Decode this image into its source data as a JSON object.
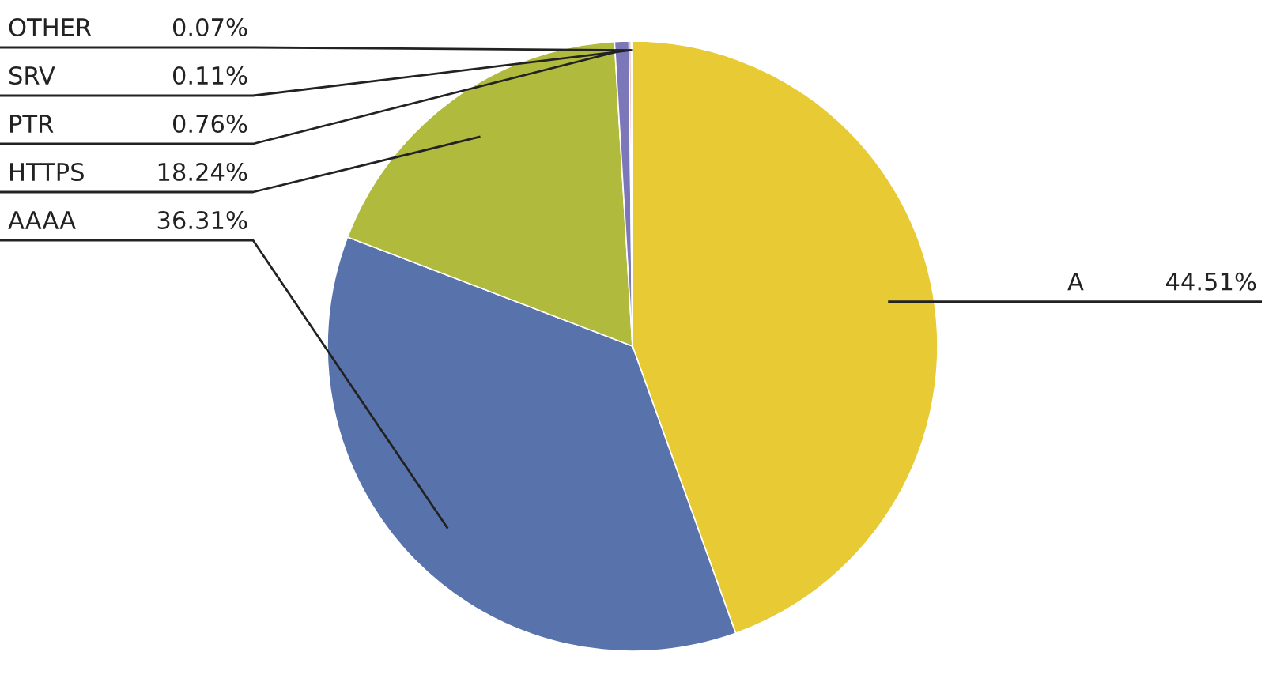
{
  "chart_data": {
    "type": "pie",
    "categories": [
      "A",
      "AAAA",
      "HTTPS",
      "PTR",
      "SRV",
      "OTHER"
    ],
    "values": [
      44.51,
      36.31,
      18.24,
      0.76,
      0.11,
      0.07
    ],
    "colors": [
      "#e8ca35",
      "#5873ab",
      "#b0ba3c",
      "#7c77b9",
      "#e0895a",
      "#d9a0a0"
    ],
    "value_labels": [
      "44.51%",
      "36.31%",
      "18.24%",
      "0.76%",
      "0.11%",
      "0.07%"
    ]
  }
}
